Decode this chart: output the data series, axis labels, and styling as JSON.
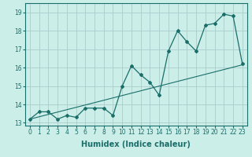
{
  "xlabel": "Humidex (Indice chaleur)",
  "bg_color": "#cceee8",
  "grid_color": "#aacccc",
  "line_color": "#1a6e6a",
  "x_data": [
    0,
    1,
    2,
    3,
    4,
    5,
    6,
    7,
    8,
    9,
    10,
    11,
    12,
    13,
    14,
    15,
    16,
    17,
    18,
    19,
    20,
    21,
    22,
    23
  ],
  "y_humidex": [
    13.2,
    13.6,
    13.6,
    13.2,
    13.4,
    13.3,
    13.8,
    13.8,
    13.8,
    13.4,
    15.0,
    16.1,
    15.6,
    15.2,
    14.5,
    16.9,
    18.0,
    17.4,
    16.9,
    18.3,
    18.4,
    18.9,
    18.8,
    16.2
  ],
  "y_linear_start": 13.2,
  "y_linear_end": 16.15,
  "ylim": [
    12.85,
    19.5
  ],
  "xlim": [
    -0.5,
    23.5
  ],
  "yticks": [
    13,
    14,
    15,
    16,
    17,
    18,
    19
  ],
  "xticks": [
    0,
    1,
    2,
    3,
    4,
    5,
    6,
    7,
    8,
    9,
    10,
    11,
    12,
    13,
    14,
    15,
    16,
    17,
    18,
    19,
    20,
    21,
    22,
    23
  ],
  "tick_fontsize": 5.5,
  "label_fontsize": 7.0
}
